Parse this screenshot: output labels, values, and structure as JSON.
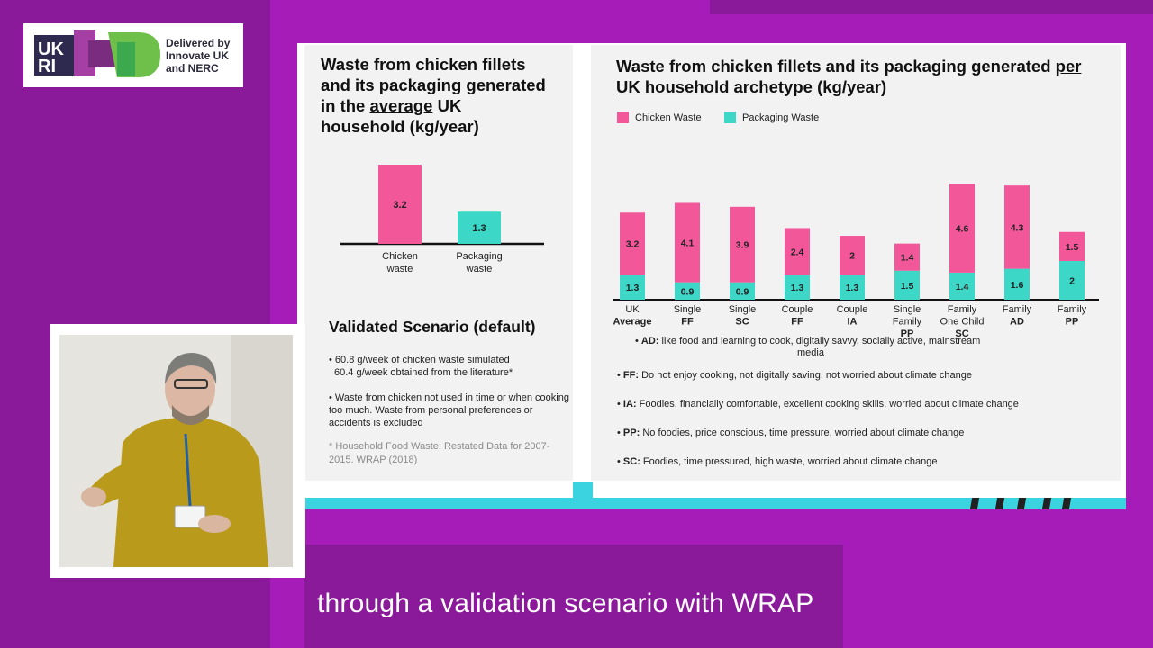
{
  "logo": {
    "line1": "Delivered by",
    "line2": "Innovate UK",
    "line3": "and NERC"
  },
  "left_panel": {
    "title_line1": "Waste from chicken fillets",
    "title_line2": "and its packaging generated",
    "title_line3_pre": "in the ",
    "title_line3_underlined": "average",
    "title_line3_post": " UK",
    "title_line4": "household (kg/year)"
  },
  "right_panel": {
    "title_line1_pre": "Waste from chicken fillets and its packaging generated ",
    "title_line1_underlined": "per",
    "title_line2_underlined": "UK household archetype",
    "title_line2_post": " (kg/year)"
  },
  "validated": {
    "title": "Validated Scenario (default)",
    "item1_line1": "• 60.8 g/week of chicken waste simulated",
    "item1_line2": "60.4 g/week obtained from the literature*",
    "item2": "• Waste from chicken not used in time or when cooking too much. Waste from personal preferences or accidents is excluded",
    "reference": "* Household Food Waste: Restated Data for 2007-2015. WRAP (2018)"
  },
  "definitions": [
    {
      "key": "AD:",
      "text": " like food and learning to cook, digitally savvy, socially active, mainstream",
      "text2": "media"
    },
    {
      "key": "FF:",
      "text": " Do not enjoy cooking, not digitally saving, not worried about climate change"
    },
    {
      "key": "IA:",
      "text": " Foodies, financially comfortable, excellent cooking skills, worried about climate change"
    },
    {
      "key": "PP:",
      "text": " No foodies, price conscious, time pressure, worried about climate change"
    },
    {
      "key": "SC:",
      "text": " Foodies, time pressured, high waste, worried about climate change"
    }
  ],
  "caption": "through a validation scenario with WRAP",
  "colors": {
    "chicken": "#f2579a",
    "packaging": "#3dd7c7",
    "accent_bg": "#a51cb8",
    "cyan": "#3bd3e0"
  },
  "chart_data": [
    {
      "type": "bar",
      "categories": [
        "Chicken waste",
        "Packaging waste"
      ],
      "values": [
        3.2,
        1.3
      ],
      "colors": [
        "#f2579a",
        "#3dd7c7"
      ],
      "ylim": [
        0,
        3.5
      ]
    },
    {
      "type": "bar",
      "stacked": true,
      "categories": [
        {
          "line1": "UK",
          "line2": "Average",
          "bold2": true
        },
        {
          "line1": "Single",
          "line2": "FF",
          "bold2": true
        },
        {
          "line1": "Single",
          "line2": "SC",
          "bold2": true
        },
        {
          "line1": "Couple",
          "line2": "FF",
          "bold2": true
        },
        {
          "line1": "Couple",
          "line2": "IA",
          "bold2": true
        },
        {
          "line1": "Single",
          "line2": "Family",
          "line3": "PP"
        },
        {
          "line1": "Family",
          "line2": "One Child",
          "line3": "SC"
        },
        {
          "line1": "Family",
          "line2": "AD",
          "bold2": true
        },
        {
          "line1": "Family",
          "line2": "PP",
          "bold2": true
        }
      ],
      "series": [
        {
          "name": "Chicken Waste",
          "values": [
            3.2,
            4.1,
            3.9,
            2.4,
            2,
            1.4,
            4.6,
            4.3,
            1.5
          ]
        },
        {
          "name": "Packaging Waste",
          "values": [
            1.3,
            0.9,
            0.9,
            1.3,
            1.3,
            1.5,
            1.4,
            1.6,
            2
          ]
        }
      ],
      "legend_position": "top-left",
      "ylim": [
        0,
        6.2
      ]
    }
  ]
}
